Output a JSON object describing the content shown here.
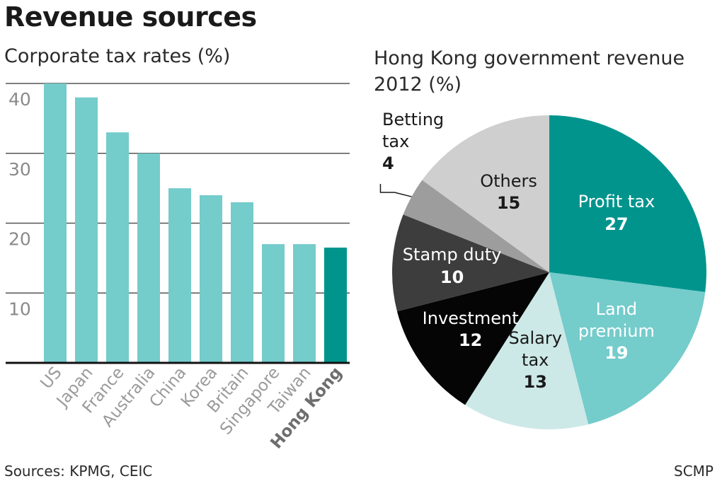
{
  "header": {
    "title": "Revenue sources",
    "source": "Sources: KPMG, CEIC",
    "credit": "SCMP"
  },
  "colors": {
    "bar": "#74cccb",
    "bar_highlight": "#00948d",
    "grid": "#555555",
    "tick_text": "#8a8a8a",
    "category_text": "#9a9a9a"
  },
  "chart_data": [
    {
      "type": "bar",
      "title": "Corporate tax rates (%)",
      "categories": [
        "US",
        "Japan",
        "France",
        "Australia",
        "China",
        "Korea",
        "Britain",
        "Singapore",
        "Taiwan",
        "Hong Kong"
      ],
      "values": [
        40,
        38,
        33,
        30,
        25,
        24,
        23,
        17,
        17,
        16.5
      ],
      "highlight": "Hong Kong",
      "yticks": [
        10,
        20,
        30,
        40
      ],
      "ylim": [
        0,
        40
      ],
      "grid": true
    },
    {
      "type": "pie",
      "title": "Hong Kong government revenue 2012 (%)",
      "slices": [
        {
          "label": "Profit tax",
          "value": 27,
          "color": "#00948d",
          "text_color": "#ffffff",
          "value_color": "#ffffff"
        },
        {
          "label": "Land premium",
          "label_lines": [
            "Land",
            "premium"
          ],
          "value": 19,
          "color": "#74cccb",
          "text_color": "#ffffff",
          "value_color": "#ffffff"
        },
        {
          "label": "Salary tax",
          "label_lines": [
            "Salary",
            "tax"
          ],
          "value": 13,
          "color": "#cce9e7",
          "text_color": "#1a1a1a",
          "value_color": "#1a1a1a"
        },
        {
          "label": "Investment",
          "value": 12,
          "color": "#050505",
          "text_color": "#ffffff",
          "value_color": "#ffffff"
        },
        {
          "label": "Stamp duty",
          "value": 10,
          "color": "#3d3d3d",
          "text_color": "#ffffff",
          "value_color": "#ffffff"
        },
        {
          "label": "Betting tax",
          "label_lines": [
            "Betting",
            "tax"
          ],
          "value": 4,
          "color": "#9d9d9d",
          "text_color": "#1a1a1a",
          "value_color": "#1a1a1a",
          "outside": true
        },
        {
          "label": "Others",
          "value": 15,
          "color": "#cfcfcf",
          "text_color": "#1a1a1a",
          "value_color": "#1a1a1a"
        }
      ]
    }
  ]
}
